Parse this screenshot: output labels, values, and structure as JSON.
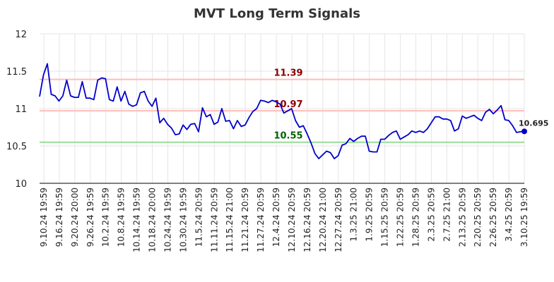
{
  "chart_data": {
    "type": "line",
    "title": "MVT Long Term Signals",
    "xlabel": "",
    "ylabel": "",
    "ylim": [
      10,
      12
    ],
    "yticks": [
      "10",
      "10.5",
      "11",
      "11.5",
      "12"
    ],
    "grid": true,
    "x_tick_labels": [
      "9.10.24 19:59",
      "9.16.24 19:59",
      "9.20.24 20:00",
      "9.26.24 19:59",
      "10.2.24 19:59",
      "10.8.24 19:59",
      "10.14.24 19:59",
      "10.18.24 20:00",
      "10.24.24 19:59",
      "10.30.24 19:59",
      "11.5.24 20:59",
      "11.11.24 20:59",
      "11.15.24 21:00",
      "11.21.24 20:59",
      "11.27.24 20:59",
      "12.4.24 20:59",
      "12.10.24 20:59",
      "12.16.24 20:59",
      "12.20.24 21:00",
      "12.27.24 20:59",
      "1.3.25 21:00",
      "1.9.25 20:59",
      "1.15.25 20:59",
      "1.22.25 20:59",
      "1.28.25 20:59",
      "2.3.25 20:59",
      "2.7.25 21:00",
      "2.13.25 20:59",
      "2.20.25 20:59",
      "2.26.25 20:59",
      "3.4.25 20:59",
      "3.10.25 19:59"
    ],
    "values": [
      11.16,
      11.45,
      11.6,
      11.19,
      11.17,
      11.1,
      11.17,
      11.38,
      11.17,
      11.15,
      11.15,
      11.36,
      11.14,
      11.14,
      11.12,
      11.38,
      11.41,
      11.4,
      11.12,
      11.1,
      11.29,
      11.1,
      11.23,
      11.06,
      11.03,
      11.05,
      11.21,
      11.23,
      11.1,
      11.03,
      11.14,
      10.81,
      10.87,
      10.79,
      10.74,
      10.65,
      10.66,
      10.78,
      10.72,
      10.79,
      10.8,
      10.69,
      11.01,
      10.89,
      10.92,
      10.79,
      10.82,
      11.0,
      10.83,
      10.84,
      10.73,
      10.84,
      10.76,
      10.78,
      10.88,
      10.96,
      11.0,
      11.11,
      11.1,
      11.08,
      11.11,
      11.09,
      11.06,
      10.94,
      10.97,
      11.0,
      10.84,
      10.75,
      10.77,
      10.66,
      10.54,
      10.4,
      10.33,
      10.38,
      10.43,
      10.41,
      10.33,
      10.37,
      10.51,
      10.53,
      10.6,
      10.56,
      10.6,
      10.63,
      10.63,
      10.43,
      10.42,
      10.42,
      10.59,
      10.59,
      10.64,
      10.68,
      10.7,
      10.59,
      10.62,
      10.65,
      10.7,
      10.68,
      10.7,
      10.68,
      10.73,
      10.81,
      10.89,
      10.89,
      10.86,
      10.86,
      10.84,
      10.7,
      10.73,
      10.9,
      10.87,
      10.89,
      10.91,
      10.87,
      10.84,
      10.95,
      10.99,
      10.93,
      10.98,
      11.04,
      10.85,
      10.84,
      10.77,
      10.68,
      10.69,
      10.695
    ],
    "last_value_label": "10.695",
    "line_color": "#0000cc",
    "hlines": [
      {
        "value": 11.39,
        "label": "11.39",
        "color": "#ffbbbb",
        "label_color": "#8b0000"
      },
      {
        "value": 10.97,
        "label": "10.97",
        "color": "#ffbbbb",
        "label_color": "#8b0000"
      },
      {
        "value": 10.55,
        "label": "10.55",
        "color": "#99dd99",
        "label_color": "#006400"
      }
    ]
  }
}
